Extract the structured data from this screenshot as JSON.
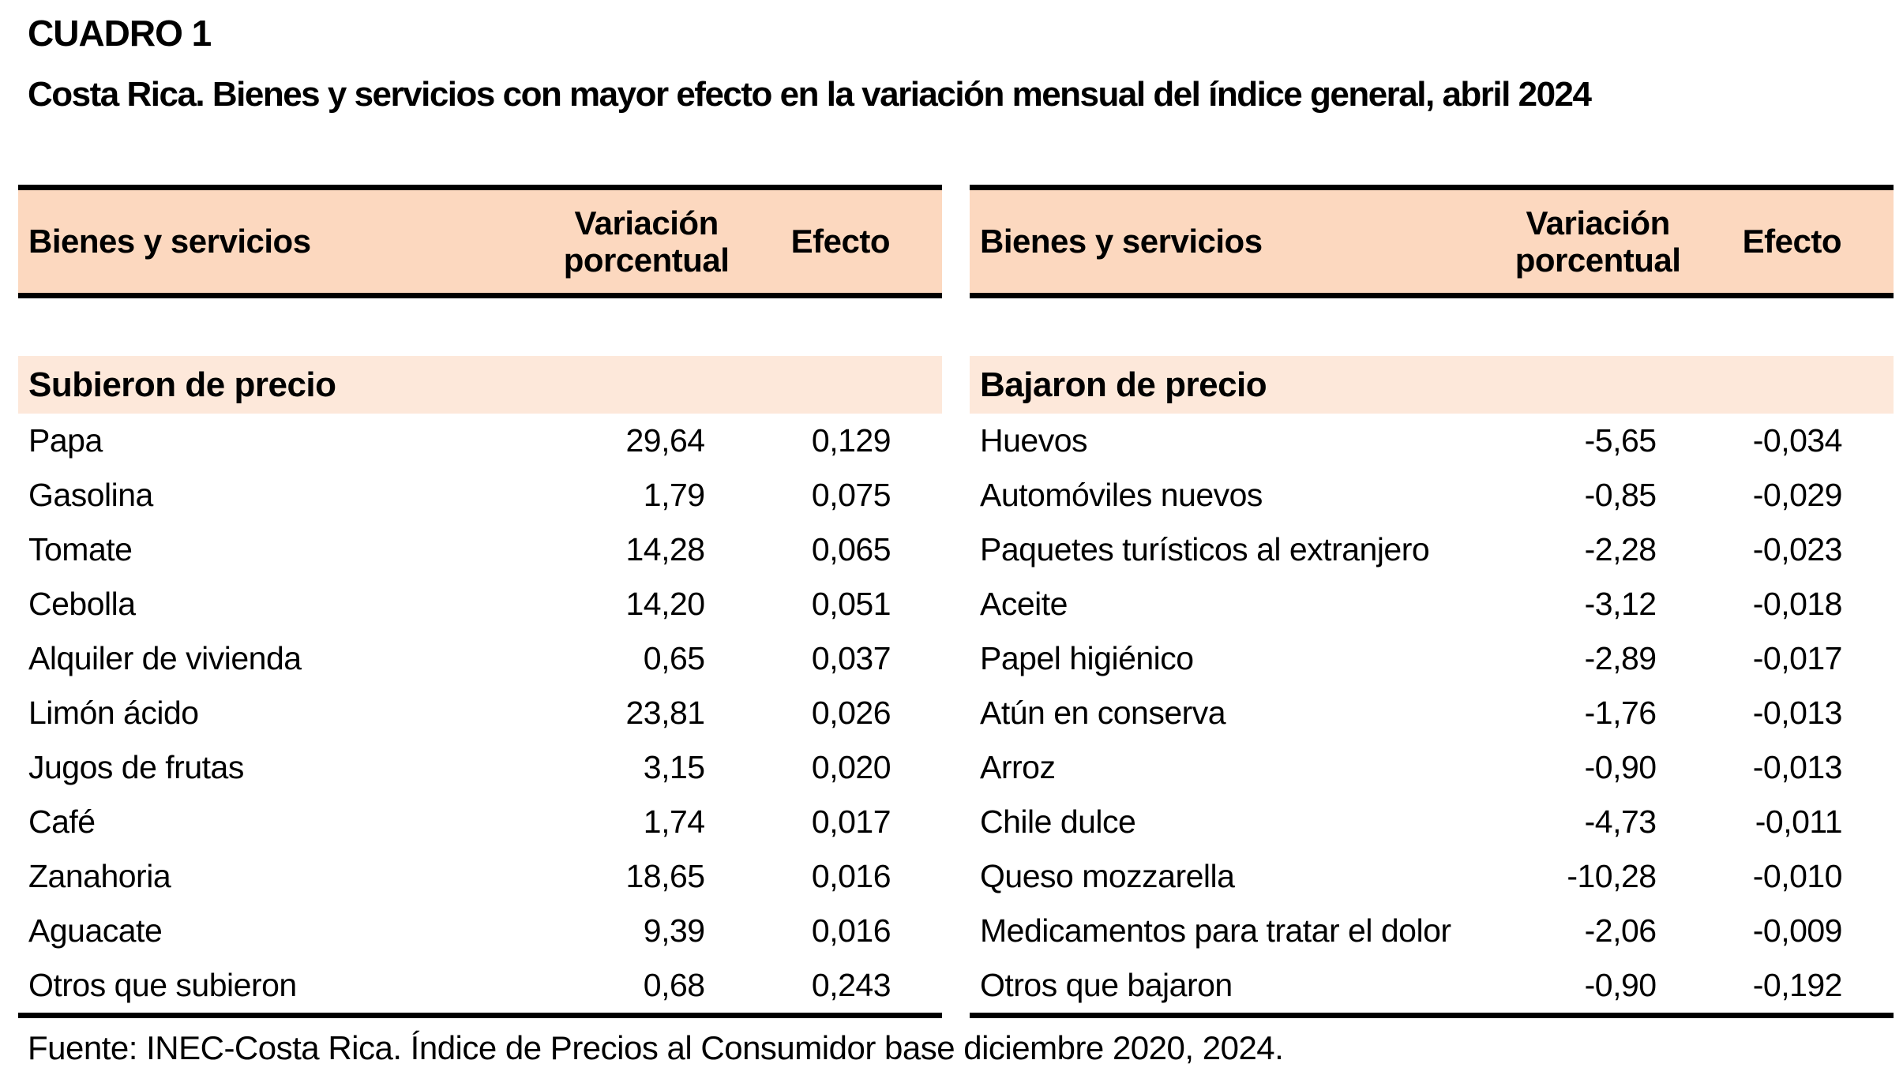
{
  "title": "CUADRO 1",
  "subtitle": "Costa Rica. Bienes y servicios con mayor efecto en la variación mensual del índice general, abril 2024",
  "columns": [
    "Bienes y servicios",
    "Variación porcentual",
    "Efecto"
  ],
  "tables": [
    {
      "section": "Subieron de precio",
      "rows": [
        {
          "name": "Papa",
          "variacion": "29,64",
          "efecto": "0,129"
        },
        {
          "name": "Gasolina",
          "variacion": "1,79",
          "efecto": "0,075"
        },
        {
          "name": "Tomate",
          "variacion": "14,28",
          "efecto": "0,065"
        },
        {
          "name": "Cebolla",
          "variacion": "14,20",
          "efecto": "0,051"
        },
        {
          "name": "Alquiler de vivienda",
          "variacion": "0,65",
          "efecto": "0,037"
        },
        {
          "name": "Limón ácido",
          "variacion": "23,81",
          "efecto": "0,026"
        },
        {
          "name": "Jugos de frutas",
          "variacion": "3,15",
          "efecto": "0,020"
        },
        {
          "name": "Café",
          "variacion": "1,74",
          "efecto": "0,017"
        },
        {
          "name": "Zanahoria",
          "variacion": "18,65",
          "efecto": "0,016"
        },
        {
          "name": "Aguacate",
          "variacion": "9,39",
          "efecto": "0,016"
        },
        {
          "name": "Otros que subieron",
          "variacion": "0,68",
          "efecto": "0,243"
        }
      ]
    },
    {
      "section": "Bajaron de precio",
      "rows": [
        {
          "name": "Huevos",
          "variacion": "-5,65",
          "efecto": "-0,034"
        },
        {
          "name": "Automóviles nuevos",
          "variacion": "-0,85",
          "efecto": "-0,029"
        },
        {
          "name": "Paquetes turísticos al extranjero",
          "variacion": "-2,28",
          "efecto": "-0,023"
        },
        {
          "name": "Aceite",
          "variacion": "-3,12",
          "efecto": "-0,018"
        },
        {
          "name": "Papel higiénico",
          "variacion": "-2,89",
          "efecto": "-0,017"
        },
        {
          "name": "Atún en conserva",
          "variacion": "-1,76",
          "efecto": "-0,013"
        },
        {
          "name": "Arroz",
          "variacion": "-0,90",
          "efecto": "-0,013"
        },
        {
          "name": "Chile dulce",
          "variacion": "-4,73",
          "efecto": "-0,011"
        },
        {
          "name": "Queso mozzarella",
          "variacion": "-10,28",
          "efecto": "-0,010"
        },
        {
          "name": "Medicamentos para tratar el dolor",
          "variacion": "-2,06",
          "efecto": "-0,009"
        },
        {
          "name": "Otros que bajaron",
          "variacion": "-0,90",
          "efecto": "-0,192"
        }
      ]
    }
  ],
  "source": "Fuente: INEC-Costa Rica. Índice de Precios al Consumidor base diciembre 2020, 2024.",
  "colors": {
    "header_bg": "#fcd8bf",
    "section_bg": "#fde8da",
    "border": "#000000",
    "text": "#000000",
    "page_bg": "#ffffff"
  }
}
